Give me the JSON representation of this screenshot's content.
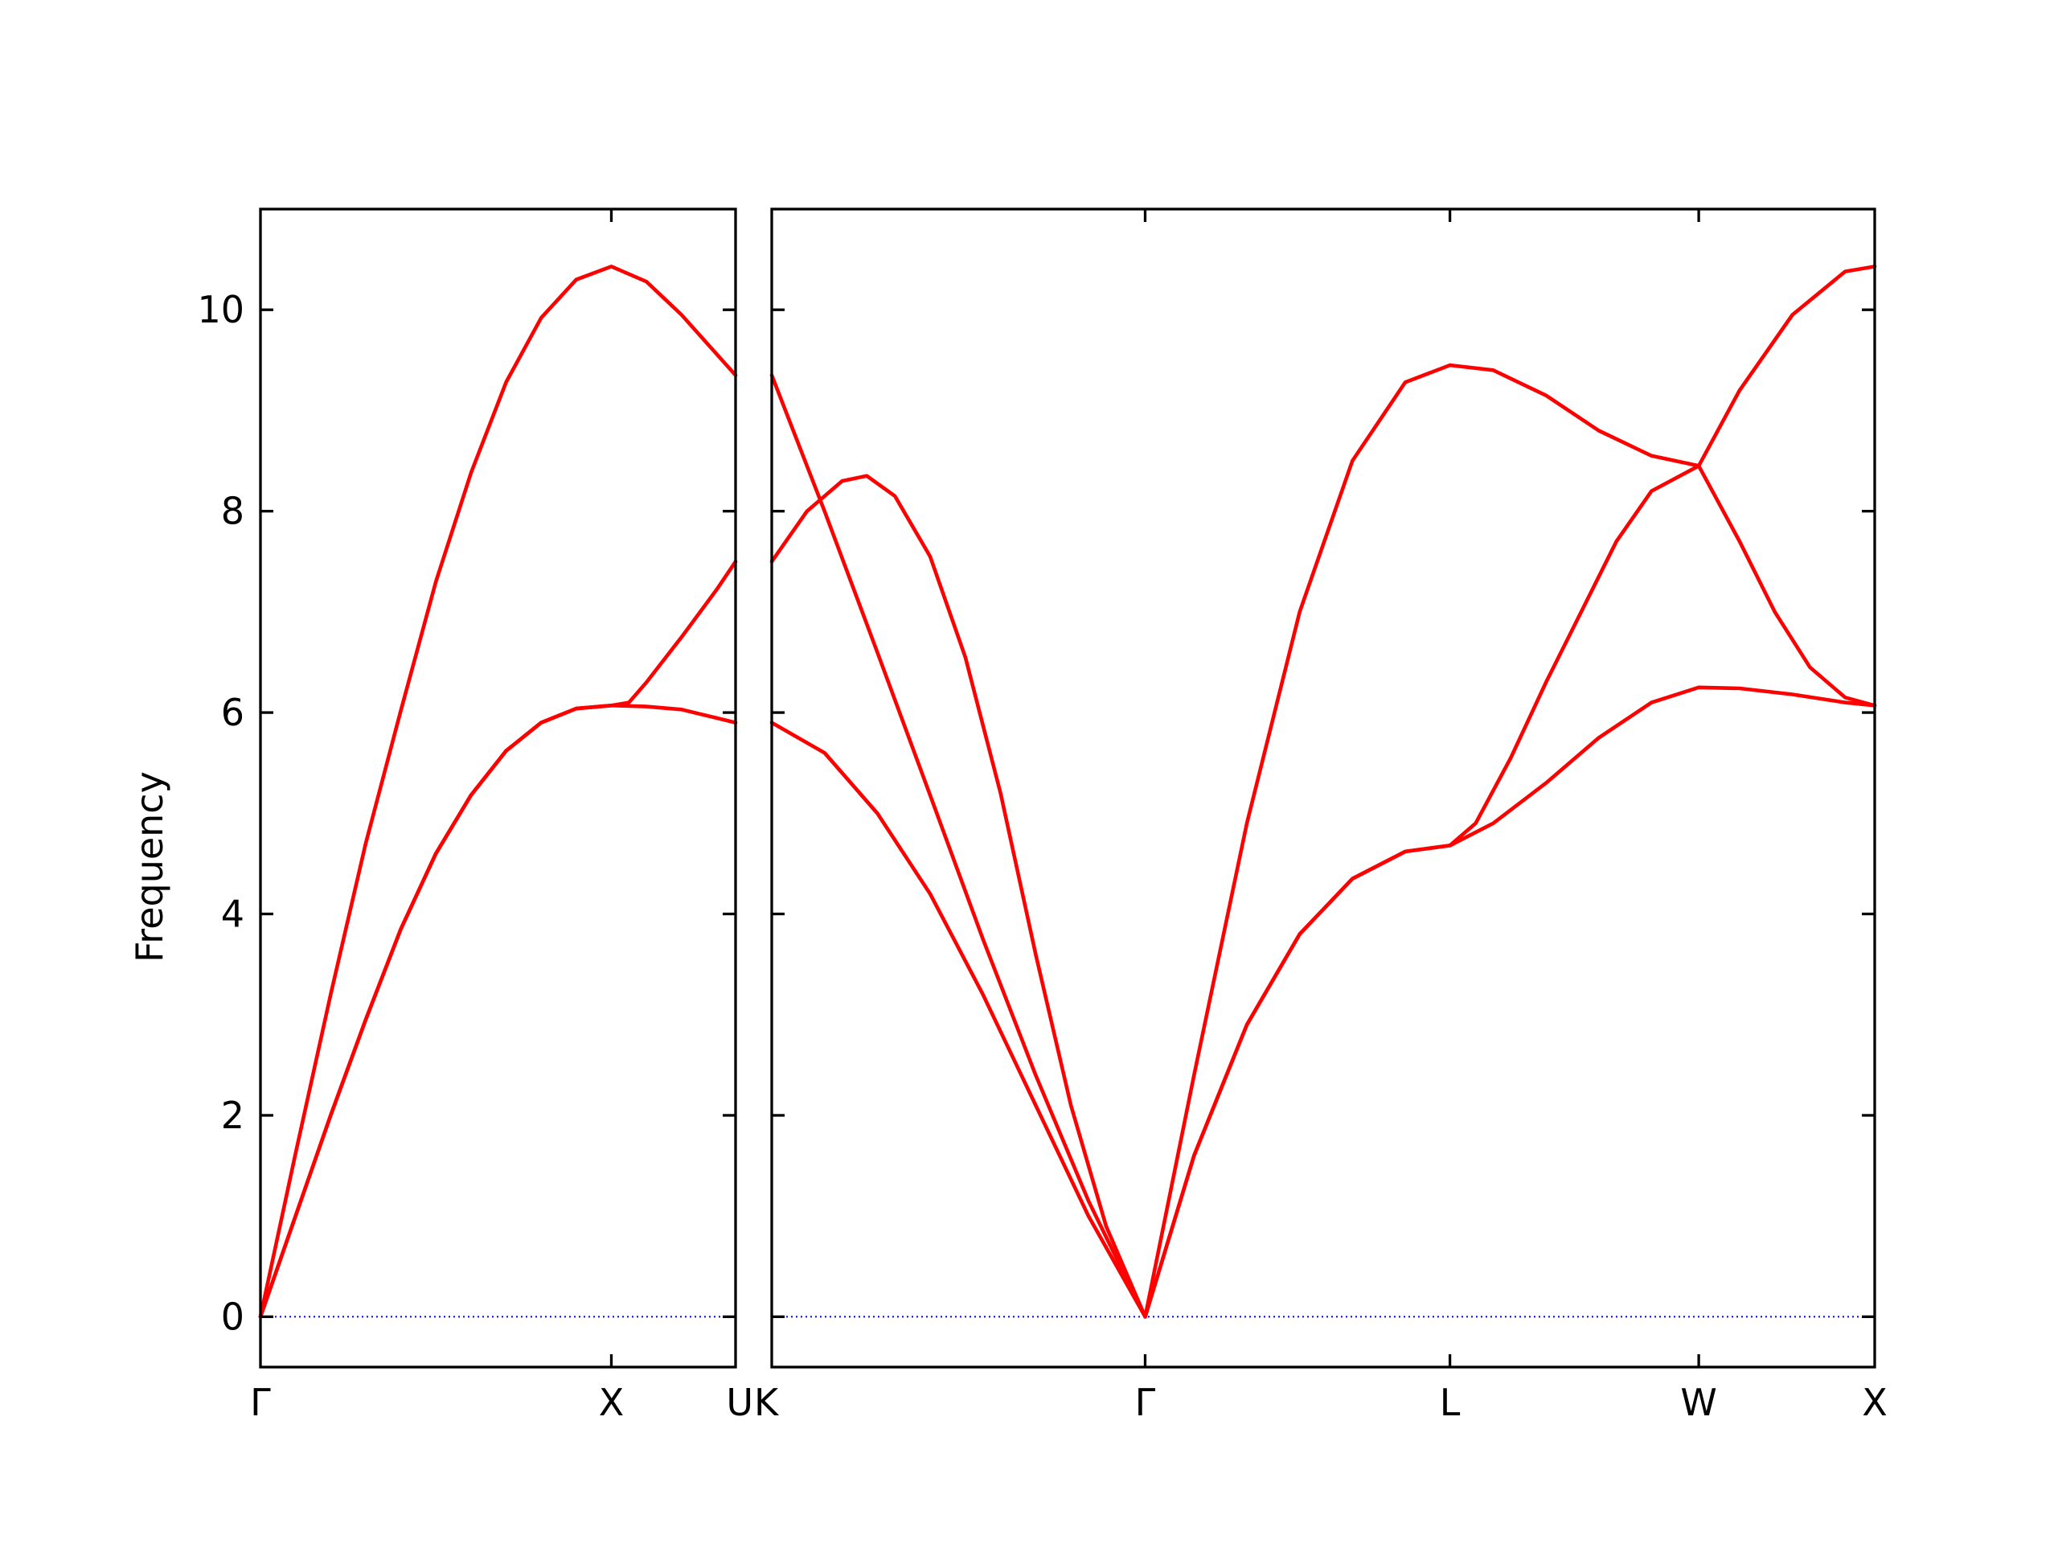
{
  "chart_data": {
    "type": "line",
    "title": "",
    "ylabel": "Frequency",
    "ylim": [
      -0.5,
      11.0
    ],
    "yticks": [
      0,
      2,
      4,
      6,
      8,
      10
    ],
    "grid": false,
    "band_color": "#ff0000",
    "zero_line_color": "#0000ff",
    "panels": [
      {
        "xlim": [
          0.0,
          1.354
        ],
        "ticks": [
          {
            "x": 0.0,
            "label": "Γ"
          },
          {
            "x": 1.0,
            "label": "X"
          },
          {
            "x": 1.354,
            "label": "U"
          }
        ],
        "series": [
          {
            "x": [
              0,
              0.1,
              0.2,
              0.3,
              0.4,
              0.5,
              0.6,
              0.7,
              0.8,
              0.9,
              1.0,
              1.1,
              1.2,
              1.354
            ],
            "y": [
              0,
              1.62,
              3.2,
              4.7,
              6.02,
              7.3,
              8.38,
              9.28,
              9.92,
              10.3,
              10.43,
              10.28,
              9.95,
              9.35
            ]
          },
          {
            "x": [
              0,
              0.1,
              0.2,
              0.3,
              0.4,
              0.5,
              0.6,
              0.7,
              0.8,
              0.9,
              1.0,
              1.05,
              1.1,
              1.2,
              1.3,
              1.354
            ],
            "y": [
              0,
              1.0,
              2.0,
              2.95,
              3.85,
              4.6,
              5.18,
              5.62,
              5.9,
              6.04,
              6.07,
              6.1,
              6.3,
              6.75,
              7.22,
              7.5
            ]
          },
          {
            "x": [
              0,
              0.1,
              0.2,
              0.3,
              0.4,
              0.5,
              0.6,
              0.7,
              0.8,
              0.9,
              1.0,
              1.1,
              1.2,
              1.354
            ],
            "y": [
              0,
              1.0,
              2.0,
              2.95,
              3.85,
              4.6,
              5.18,
              5.62,
              5.9,
              6.04,
              6.07,
              6.06,
              6.03,
              5.9
            ]
          }
        ]
      },
      {
        "xlim": [
          0.0,
          3.134
        ],
        "ticks": [
          {
            "x": 0.0,
            "label": "K"
          },
          {
            "x": 1.061,
            "label": "Γ"
          },
          {
            "x": 1.927,
            "label": "L"
          },
          {
            "x": 2.634,
            "label": "W"
          },
          {
            "x": 3.134,
            "label": "X"
          }
        ],
        "series": [
          {
            "x": [
              0,
              0.15,
              0.3,
              0.45,
              0.6,
              0.75,
              0.9,
              1.061,
              1.2,
              1.35,
              1.5,
              1.65,
              1.8,
              1.927,
              2.05,
              2.2,
              2.35,
              2.5,
              2.634,
              2.75,
              2.9,
              3.05,
              3.134
            ],
            "y": [
              9.35,
              8.0,
              6.6,
              5.18,
              3.75,
              2.4,
              1.15,
              0,
              2.4,
              4.9,
              7.0,
              8.5,
              9.28,
              9.45,
              9.4,
              9.15,
              8.8,
              8.55,
              8.45,
              9.2,
              9.95,
              10.38,
              10.43
            ]
          },
          {
            "x": [
              0,
              0.1,
              0.2,
              0.27,
              0.35,
              0.45,
              0.55,
              0.65,
              0.75,
              0.85,
              0.95,
              1.061,
              1.2,
              1.35,
              1.5,
              1.65,
              1.8,
              1.927,
              2.0,
              2.1,
              2.2,
              2.3,
              2.4,
              2.5,
              2.634,
              2.75,
              2.85,
              2.95,
              3.05,
              3.134
            ],
            "y": [
              7.5,
              8.0,
              8.3,
              8.35,
              8.15,
              7.55,
              6.55,
              5.2,
              3.6,
              2.1,
              0.9,
              0,
              1.6,
              2.9,
              3.8,
              4.35,
              4.62,
              4.68,
              4.9,
              5.55,
              6.3,
              7.0,
              7.7,
              8.2,
              8.45,
              7.7,
              7.0,
              6.45,
              6.15,
              6.07
            ]
          },
          {
            "x": [
              0,
              0.15,
              0.3,
              0.45,
              0.6,
              0.75,
              0.9,
              1.061,
              1.2,
              1.35,
              1.5,
              1.65,
              1.8,
              1.927,
              2.05,
              2.2,
              2.35,
              2.5,
              2.634,
              2.75,
              2.9,
              3.05,
              3.134
            ],
            "y": [
              5.9,
              5.6,
              5.0,
              4.2,
              3.2,
              2.1,
              1.0,
              0,
              1.6,
              2.9,
              3.8,
              4.35,
              4.62,
              4.68,
              4.9,
              5.3,
              5.75,
              6.1,
              6.25,
              6.24,
              6.18,
              6.1,
              6.07
            ]
          }
        ]
      }
    ]
  }
}
